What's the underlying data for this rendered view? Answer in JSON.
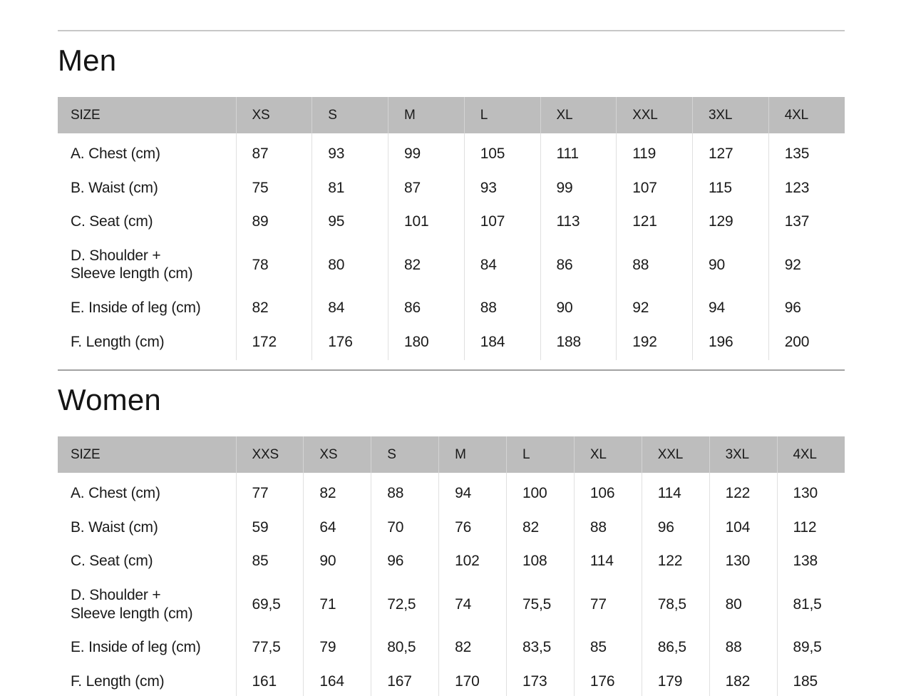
{
  "colors": {
    "header_bg": "#bdbdbd",
    "header_separator": "#d4d4d4",
    "body_separator": "#e0e0e0",
    "divider": "#a2a2a2",
    "divider_top": "#c7c7c7",
    "text": "#1a1a1a",
    "background": "#ffffff"
  },
  "tables": [
    {
      "id": "men",
      "title": "Men",
      "header": [
        "SIZE",
        "XS",
        "S",
        "M",
        "L",
        "XL",
        "XXL",
        "3XL",
        "4XL"
      ],
      "rows": [
        {
          "label": "A. Chest (cm)",
          "values": [
            "87",
            "93",
            "99",
            "105",
            "111",
            "119",
            "127",
            "135"
          ]
        },
        {
          "label": "B. Waist (cm)",
          "values": [
            "75",
            "81",
            "87",
            "93",
            "99",
            "107",
            "115",
            "123"
          ]
        },
        {
          "label": "C. Seat (cm)",
          "values": [
            "89",
            "95",
            "101",
            "107",
            "113",
            "121",
            "129",
            "137"
          ]
        },
        {
          "label": "D. Shoulder +\nSleeve length (cm)",
          "values": [
            "78",
            "80",
            "82",
            "84",
            "86",
            "88",
            "90",
            "92"
          ]
        },
        {
          "label": "E. Inside of leg (cm)",
          "values": [
            "82",
            "84",
            "86",
            "88",
            "90",
            "92",
            "94",
            "96"
          ]
        },
        {
          "label": "F. Length (cm)",
          "values": [
            "172",
            "176",
            "180",
            "184",
            "188",
            "192",
            "196",
            "200"
          ]
        }
      ]
    },
    {
      "id": "women",
      "title": "Women",
      "header": [
        "SIZE",
        "XXS",
        "XS",
        "S",
        "M",
        "L",
        "XL",
        "XXL",
        "3XL",
        "4XL"
      ],
      "rows": [
        {
          "label": "A. Chest (cm)",
          "values": [
            "77",
            "82",
            "88",
            "94",
            "100",
            "106",
            "114",
            "122",
            "130"
          ]
        },
        {
          "label": "B. Waist (cm)",
          "values": [
            "59",
            "64",
            "70",
            "76",
            "82",
            "88",
            "96",
            "104",
            "112"
          ]
        },
        {
          "label": "C. Seat (cm)",
          "values": [
            "85",
            "90",
            "96",
            "102",
            "108",
            "114",
            "122",
            "130",
            "138"
          ]
        },
        {
          "label": "D. Shoulder +\nSleeve length (cm)",
          "values": [
            "69,5",
            "71",
            "72,5",
            "74",
            "75,5",
            "77",
            "78,5",
            "80",
            "81,5"
          ]
        },
        {
          "label": "E. Inside of leg (cm)",
          "values": [
            "77,5",
            "79",
            "80,5",
            "82",
            "83,5",
            "85",
            "86,5",
            "88",
            "89,5"
          ]
        },
        {
          "label": "F. Length (cm)",
          "values": [
            "161",
            "164",
            "167",
            "170",
            "173",
            "176",
            "179",
            "182",
            "185"
          ]
        }
      ]
    }
  ]
}
